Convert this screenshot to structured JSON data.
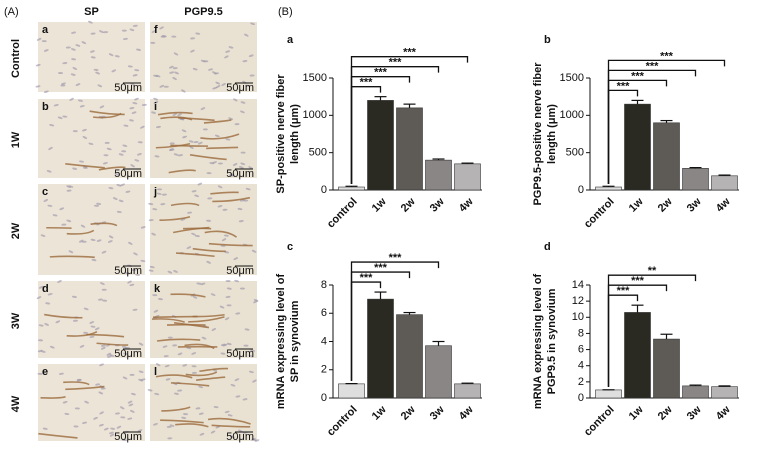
{
  "panel_a": {
    "label": "(A)",
    "columns": [
      "SP",
      "PGP9.5"
    ],
    "rows": [
      "Control",
      "1W",
      "2W",
      "3W",
      "4W"
    ],
    "letters": [
      [
        "a",
        "f"
      ],
      [
        "b",
        "i"
      ],
      [
        "c",
        "j"
      ],
      [
        "d",
        "k"
      ],
      [
        "e",
        "l"
      ]
    ],
    "scale_bar": "50μm"
  },
  "panel_b": {
    "label": "(B)"
  },
  "chart_data": [
    {
      "type": "bar",
      "panel": "a",
      "ylabel": [
        "SP-positive nerve fiber",
        "length (μm)"
      ],
      "categories": [
        "control",
        "1w",
        "2w",
        "3w",
        "4w"
      ],
      "values": [
        40,
        1200,
        1100,
        400,
        350
      ],
      "errors": [
        10,
        50,
        50,
        15,
        10
      ],
      "colors": [
        "#dedede",
        "#2a2a22",
        "#5e5a56",
        "#8a8686",
        "#b5b3b3"
      ],
      "ylim": [
        0,
        1500
      ],
      "yticks": [
        0,
        500,
        1000,
        1500
      ],
      "significance": [
        "***",
        "***",
        "***",
        "***"
      ]
    },
    {
      "type": "bar",
      "panel": "b",
      "ylabel": [
        "PGP9.5-positive nerve fiber",
        "length (μm)"
      ],
      "categories": [
        "control",
        "1w",
        "2w",
        "3w",
        "4w"
      ],
      "values": [
        40,
        1150,
        900,
        290,
        190
      ],
      "errors": [
        10,
        50,
        30,
        10,
        10
      ],
      "colors": [
        "#dedede",
        "#2a2a22",
        "#5e5a56",
        "#8a8686",
        "#b5b3b3"
      ],
      "ylim": [
        0,
        1500
      ],
      "yticks": [
        0,
        500,
        1000,
        1500
      ],
      "significance": [
        "***",
        "***",
        "***",
        "***"
      ]
    },
    {
      "type": "bar",
      "panel": "c",
      "ylabel": [
        "mRNA expressing level of",
        "SP in synovium"
      ],
      "categories": [
        "control",
        "1w",
        "2w",
        "3w",
        "4w"
      ],
      "values": [
        1,
        7.0,
        5.9,
        3.7,
        1.0
      ],
      "errors": [
        0.02,
        0.5,
        0.15,
        0.3,
        0.05
      ],
      "colors": [
        "#dedede",
        "#2a2a22",
        "#5e5a56",
        "#8a8686",
        "#b5b3b3"
      ],
      "ylim": [
        0,
        8
      ],
      "yticks": [
        0,
        2,
        4,
        6,
        8
      ],
      "significance": [
        "***",
        "***",
        "***"
      ]
    },
    {
      "type": "bar",
      "panel": "d",
      "ylabel": [
        "mRNA expressing level of",
        "PGP9.5 in synovium"
      ],
      "categories": [
        "control",
        "1w",
        "2w",
        "3w",
        "4w"
      ],
      "values": [
        1,
        10.6,
        7.3,
        1.5,
        1.4
      ],
      "errors": [
        0.02,
        0.9,
        0.6,
        0.1,
        0.1
      ],
      "colors": [
        "#dedede",
        "#2a2a22",
        "#5e5a56",
        "#8a8686",
        "#b5b3b3"
      ],
      "ylim": [
        0,
        14
      ],
      "yticks": [
        0,
        2,
        4,
        6,
        8,
        10,
        12,
        14
      ],
      "significance": [
        "***",
        "***",
        "**"
      ]
    }
  ]
}
